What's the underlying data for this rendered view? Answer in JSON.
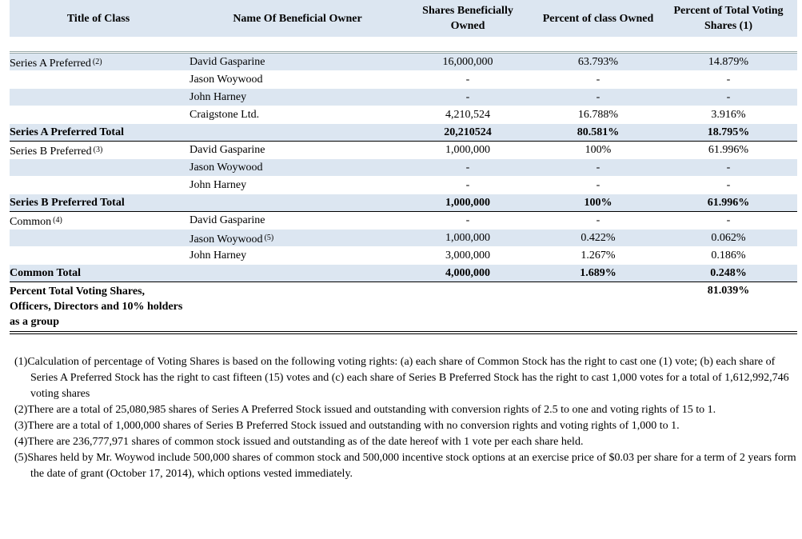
{
  "table": {
    "header": [
      "Title of Class",
      "Name Of Beneficial Owner",
      "Shares Beneficially Owned",
      "Percent of class Owned",
      "Percent of Total Voting Shares (1)"
    ],
    "rows": [
      [
        {
          "text": "Series A Preferred",
          "note": "(2)"
        },
        "David Gasparine",
        "16,000,000",
        "63.793%",
        "14.879%"
      ],
      [
        null,
        "Jason Woywood",
        "-",
        "-",
        "-"
      ],
      [
        null,
        "John Harney",
        "-",
        "-",
        "-"
      ],
      [
        null,
        "Craigstone Ltd.",
        "4,210,524",
        "16.788%",
        "3.916%"
      ],
      [
        "Series A Preferred Total",
        null,
        "20,210524",
        "80.581%",
        "18.795%"
      ],
      [
        {
          "text": "Series B Preferred",
          "note": "(3)"
        },
        "David Gasparine",
        "1,000,000",
        "100%",
        "61.996%"
      ],
      [
        null,
        "Jason Woywood",
        "-",
        "-",
        "-"
      ],
      [
        null,
        "John Harney",
        "-",
        "-",
        "-"
      ],
      [
        "Series B Preferred Total",
        null,
        "1,000,000",
        "100%",
        "61.996%"
      ],
      [
        {
          "text": "Common",
          "note": "(4)"
        },
        "David Gasparine",
        "-",
        "-",
        "-"
      ],
      [
        null,
        {
          "text": "Jason Woywood",
          "note": "(5)"
        },
        "1,000,000",
        "0.422%",
        "0.062%"
      ],
      [
        null,
        "John Harney",
        "3,000,000",
        "1.267%",
        "0.186%"
      ],
      [
        "Common Total",
        null,
        "4,000,000",
        "1.689%",
        "0.248%"
      ],
      [
        "Percent Total Voting Shares, Officers, Directors and 10% holders as a group",
        null,
        null,
        null,
        "81.039%"
      ]
    ]
  },
  "footnotes": [
    "(1)Calculation of percentage of Voting Shares is based on the following voting rights: (a) each share of Common Stock has the right to cast one (1) vote; (b) each share of Series A Preferred Stock has the right to cast fifteen (15) votes and (c) each share of Series B Preferred Stock has the right to cast 1,000 votes for a total of 1,612,992,746 voting shares",
    "(2)There are a total of 25,080,985 shares of Series A Preferred Stock issued and outstanding with conversion rights of 2.5 to one and voting rights of 15 to 1.",
    "(3)There are a total of 1,000,000 shares of Series B Preferred Stock issued and outstanding with no conversion rights and voting rights of 1,000 to 1.",
    "(4)There are 236,777,971 shares of common stock issued and outstanding as of the date hereof with 1 vote per each share held.",
    "(5)Shares held by Mr. Woywod include 500,000 shares of common stock and 500,000 incentive stock options at an exercise price of $0.03 per share for a term of 2 years form the date of grant (October 17, 2014), which options vested immediately."
  ]
}
